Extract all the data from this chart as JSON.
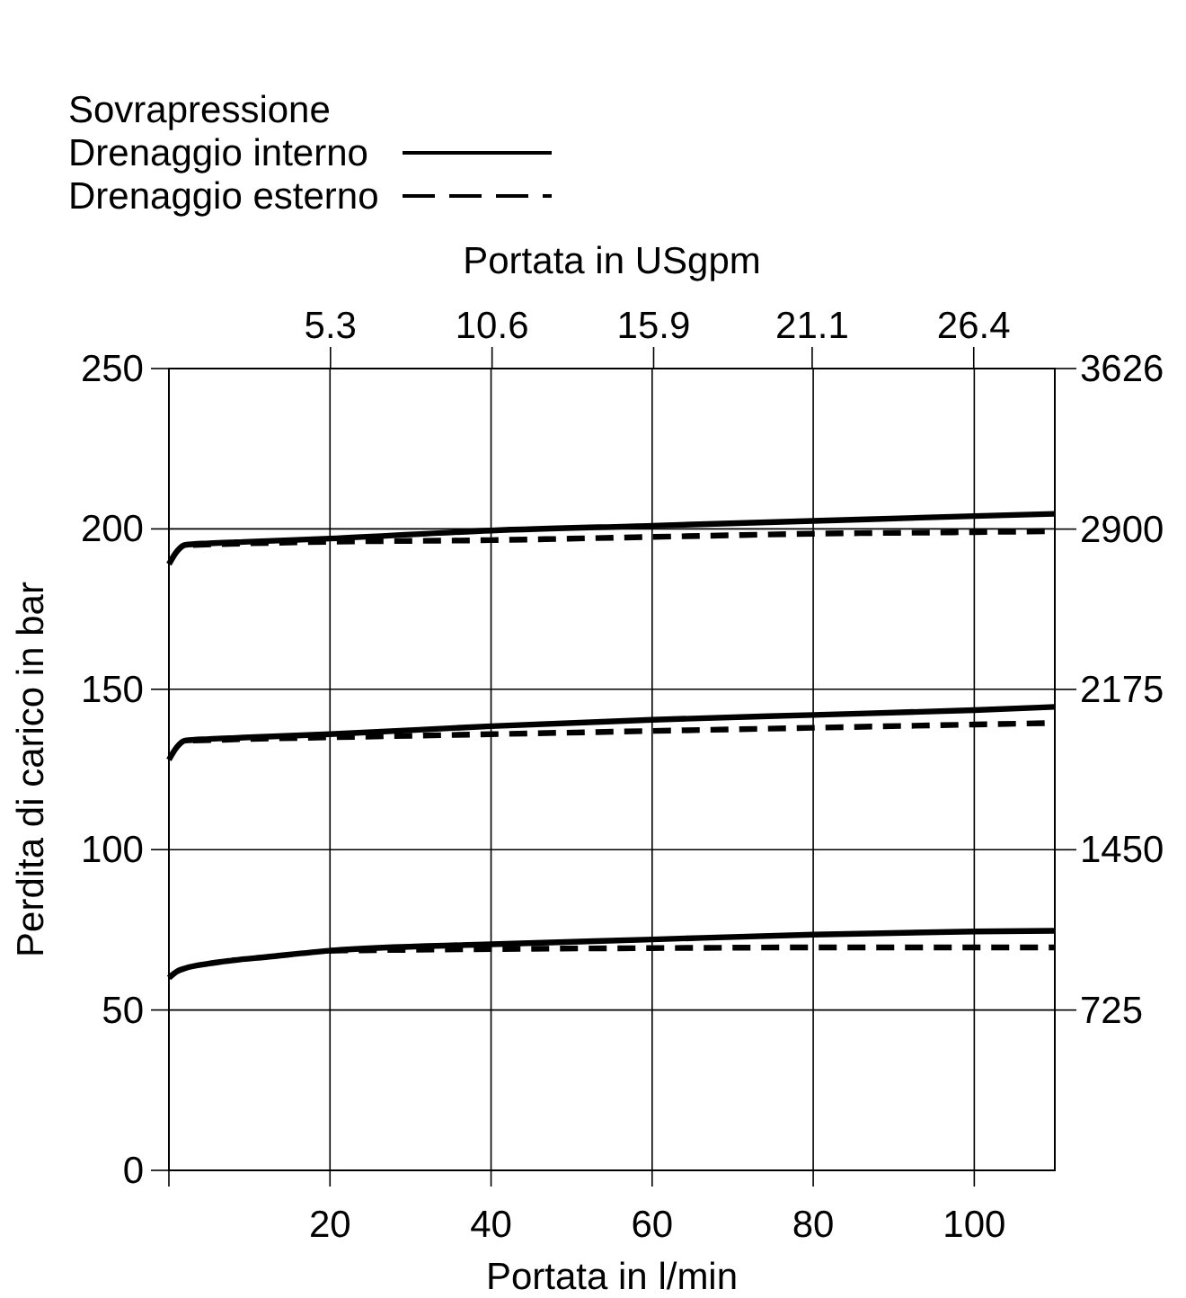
{
  "chart_data": {
    "type": "line",
    "legend_title": "Sovrapressione",
    "xlabel": "Portata in l/min",
    "x2label": "Portata in USgpm",
    "ylabel": "Perdita di carico in bar",
    "xlim": [
      0,
      110
    ],
    "xticks": [
      {
        "value": 0,
        "label": null
      },
      20,
      40,
      60,
      80,
      100
    ],
    "x2lim": [
      0,
      29.06
    ],
    "x2ticks": [
      5.3,
      10.6,
      15.9,
      21.1,
      26.4
    ],
    "ylim": [
      0,
      250
    ],
    "yticks": [
      0,
      50,
      100,
      150,
      200,
      250
    ],
    "y2lim": [
      0,
      3626
    ],
    "y2ticks": [
      725,
      1450,
      2175,
      2900,
      3626
    ],
    "grid": true,
    "legend": "top left",
    "marker": "none",
    "series": [
      {
        "name": "Drenaggio interno",
        "color": "#000000",
        "line_style": "solid",
        "x": [
          0,
          1,
          2,
          5,
          10,
          20,
          40,
          60,
          80,
          100,
          110
        ],
        "values": [
          189,
          193,
          195,
          195.5,
          196,
          197,
          199.5,
          201,
          202.5,
          204,
          204.7
        ]
      },
      {
        "name": "Drenaggio esterno",
        "color": "#000000",
        "line_style": "dashed",
        "x": [
          3,
          10,
          20,
          40,
          60,
          80,
          100,
          110
        ],
        "values": [
          195,
          195.5,
          196,
          196.5,
          197.5,
          198.5,
          199,
          199.3
        ]
      },
      {
        "color": "#000000",
        "line_style": "solid",
        "x": [
          0,
          1,
          2,
          5,
          10,
          20,
          40,
          60,
          80,
          100,
          110
        ],
        "values": [
          128,
          132,
          134,
          134.5,
          135,
          136,
          138.5,
          140.5,
          142,
          143.5,
          144.5
        ]
      },
      {
        "color": "#000000",
        "line_style": "dashed",
        "x": [
          3,
          10,
          20,
          40,
          60,
          80,
          100,
          110
        ],
        "values": [
          134,
          134.5,
          135,
          136,
          137,
          138,
          139,
          139.5
        ]
      },
      {
        "color": "#000000",
        "line_style": "solid",
        "x": [
          0,
          1,
          2,
          5,
          8,
          12,
          20,
          40,
          60,
          80,
          100,
          110
        ],
        "values": [
          60,
          62,
          63,
          64.5,
          65.5,
          66.5,
          68.5,
          70.5,
          72,
          73.5,
          74.5,
          74.7
        ]
      },
      {
        "color": "#000000",
        "line_style": "dashed",
        "x": [
          20,
          40,
          60,
          80,
          100,
          110
        ],
        "values": [
          68.5,
          69,
          69.3,
          69.5,
          69.5,
          69.5
        ]
      }
    ]
  }
}
